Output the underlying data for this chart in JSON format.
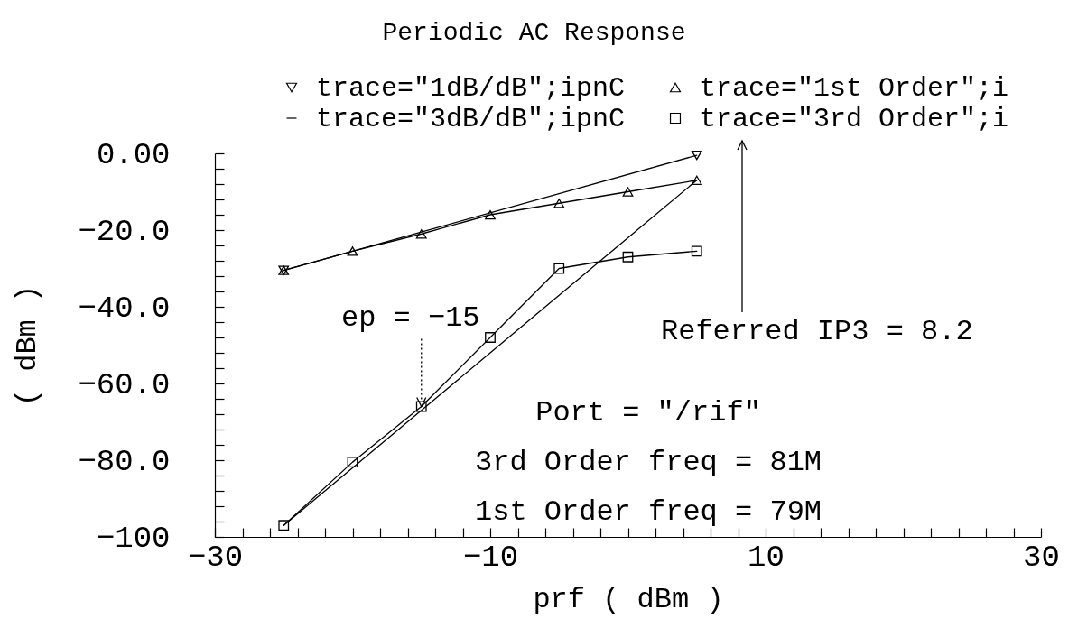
{
  "chart_data": {
    "type": "line",
    "title": "Periodic AC Response",
    "xlabel": "prf ( dBm )",
    "ylabel": "( dBm )",
    "x": [
      -25,
      -20,
      -15,
      -10,
      -5,
      0,
      5
    ],
    "series": [
      {
        "name": "trace=\"1dB/dB\";ipnC",
        "color": "#000000",
        "marker": "triangle-down",
        "x": [
          -25,
          5
        ],
        "values": [
          -30.5,
          -0.5
        ]
      },
      {
        "name": "trace=\"1st Order\";i",
        "color": "#000000",
        "marker": "triangle",
        "values": [
          -30.5,
          -25.5,
          -21,
          -16,
          -13,
          -10,
          -7
        ]
      },
      {
        "name": "trace=\"3dB/dB\";ipnC",
        "color": "#000000",
        "values": [
          -97,
          -82,
          -67,
          -52,
          -37,
          -22,
          -7
        ]
      },
      {
        "name": "trace=\"3rd Order\";i",
        "color": "#000000",
        "marker": "square",
        "values": [
          -97,
          -80.5,
          -66,
          -48,
          -30,
          -27,
          -25.5
        ]
      }
    ],
    "xlim": [
      -30,
      30
    ],
    "xticks": [
      -30,
      {
        "value": -28,
        "label": null
      },
      {
        "value": -26,
        "label": null
      },
      {
        "value": -24,
        "label": null
      },
      {
        "value": -22,
        "label": null
      },
      {
        "value": -20,
        "label": null
      },
      {
        "value": -18,
        "label": null
      },
      {
        "value": -16,
        "label": null
      },
      {
        "value": -14,
        "label": null
      },
      {
        "value": -12,
        "label": null
      },
      -10,
      {
        "value": -8,
        "label": null
      },
      {
        "value": -6,
        "label": null
      },
      {
        "value": -4,
        "label": null
      },
      {
        "value": -2,
        "label": null
      },
      {
        "value": 0,
        "label": null
      },
      {
        "value": 2,
        "label": null
      },
      {
        "value": 4,
        "label": null
      },
      {
        "value": 6,
        "label": null
      },
      {
        "value": 8,
        "label": null
      },
      10,
      {
        "value": 12,
        "label": null
      },
      {
        "value": 14,
        "label": null
      },
      {
        "value": 16,
        "label": null
      },
      {
        "value": 18,
        "label": null
      },
      {
        "value": 20,
        "label": null
      },
      {
        "value": 22,
        "label": null
      },
      {
        "value": 24,
        "label": null
      },
      {
        "value": 26,
        "label": null
      },
      {
        "value": 28,
        "label": null
      },
      30
    ],
    "ylim": [
      -100,
      0
    ],
    "yticks": [
      -100,
      {
        "value": -96,
        "label": null
      },
      {
        "value": -92,
        "label": null
      },
      {
        "value": -88,
        "label": null
      },
      {
        "value": -84,
        "label": null
      },
      {
        "value": -80,
        "label": "−80.0"
      },
      {
        "value": -76,
        "label": null
      },
      {
        "value": -72,
        "label": null
      },
      {
        "value": -68,
        "label": null
      },
      {
        "value": -64,
        "label": null
      },
      {
        "value": -60,
        "label": "−60.0"
      },
      {
        "value": -56,
        "label": null
      },
      {
        "value": -52,
        "label": null
      },
      {
        "value": -48,
        "label": null
      },
      {
        "value": -44,
        "label": null
      },
      {
        "value": -40,
        "label": "−40.0"
      },
      {
        "value": -36,
        "label": null
      },
      {
        "value": -32,
        "label": null
      },
      {
        "value": -28,
        "label": null
      },
      {
        "value": -24,
        "label": null
      },
      {
        "value": -20,
        "label": "−20.0"
      },
      {
        "value": -16,
        "label": null
      },
      {
        "value": -12,
        "label": null
      },
      {
        "value": -8,
        "label": null
      },
      {
        "value": -4,
        "label": null
      },
      {
        "value": 0,
        "label": "0.00"
      }
    ],
    "legend": "top",
    "annotations": [
      {
        "text": "ep = −15",
        "x": -15,
        "y": -66
      },
      "Referred IP3 = 8.2",
      "Port = \"/rif\"",
      "3rd Order freq = 81M",
      "1st Order freq = 79M"
    ]
  }
}
